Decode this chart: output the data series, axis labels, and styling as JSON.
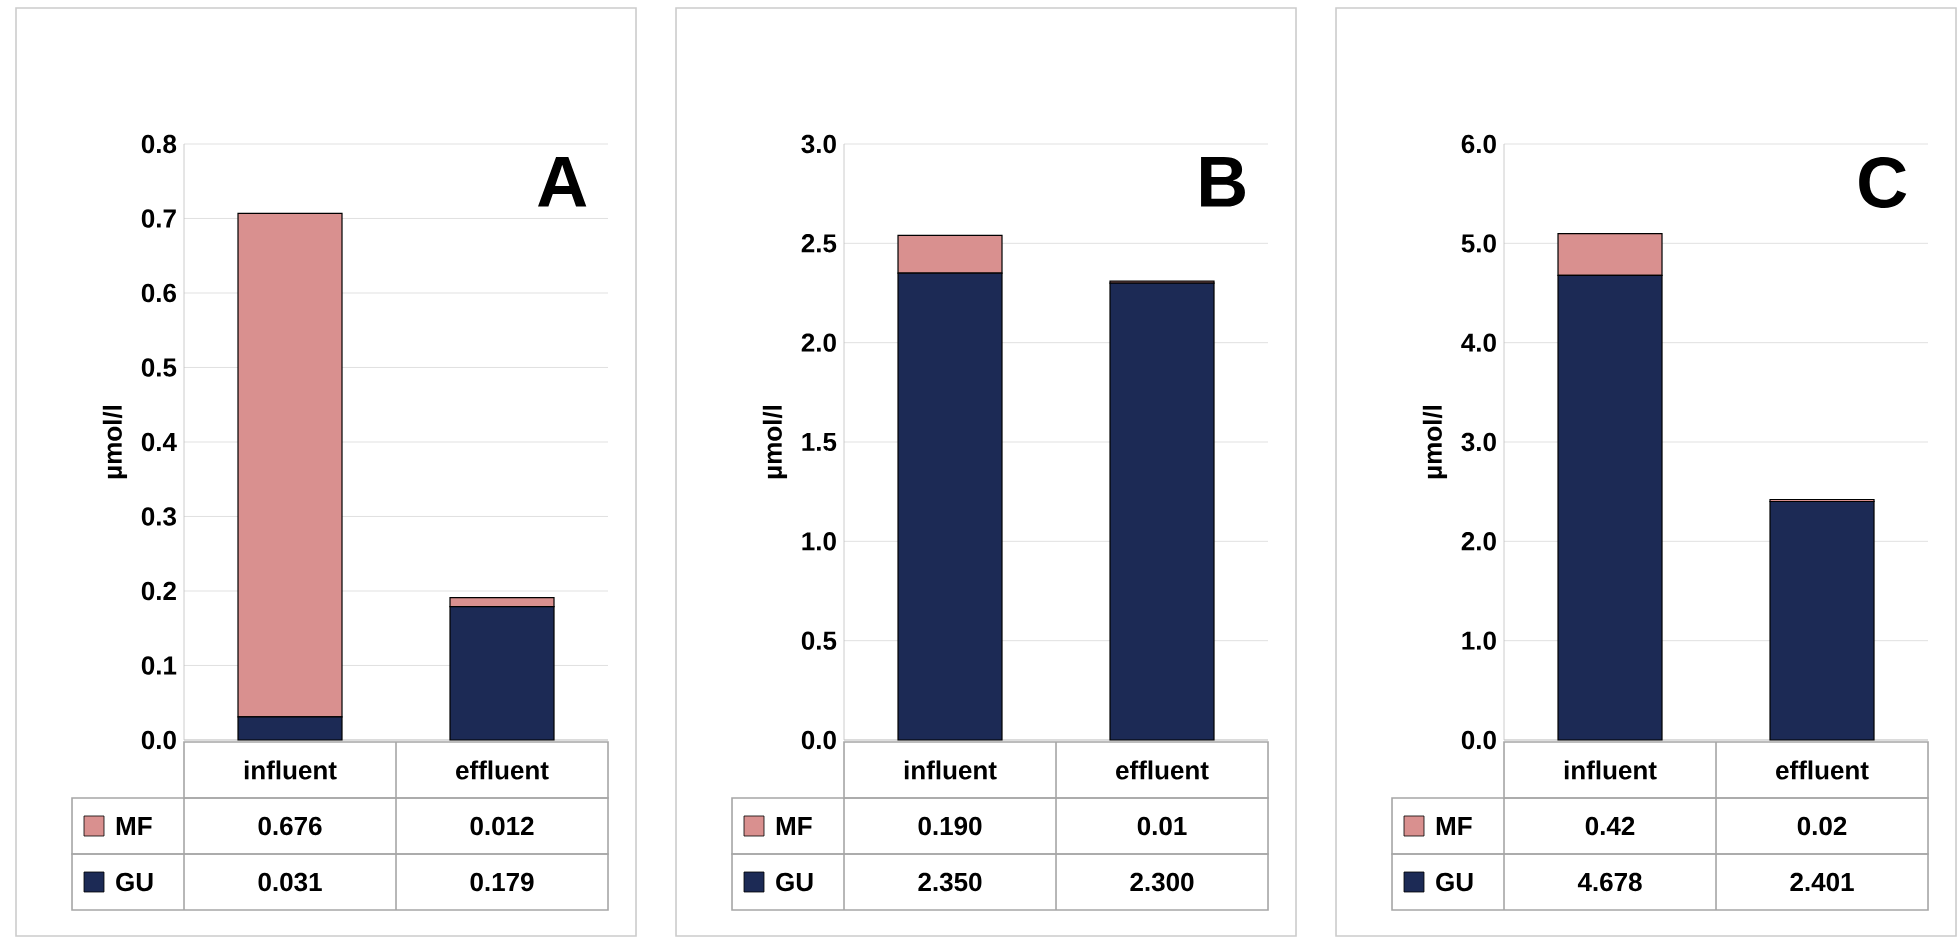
{
  "chart_data": [
    {
      "type": "bar",
      "title": "A",
      "ylabel": "µmol/l",
      "categories": [
        "influent",
        "effluent"
      ],
      "stacked": true,
      "grid": "y",
      "legend": "bottom",
      "ylim": [
        0,
        0.8
      ],
      "yticks": [
        {
          "value": 0,
          "label": "0.0"
        },
        0.1,
        0.2,
        0.3,
        0.4,
        0.5,
        0.6,
        0.7,
        0.8
      ],
      "series": [
        {
          "name": "GU",
          "color": "#1c2a55",
          "values": [
            0.031,
            0.179
          ],
          "value_labels": [
            "0.031",
            "0.179"
          ]
        },
        {
          "name": "MF",
          "color": "#d9908f",
          "values": [
            0.676,
            0.012
          ],
          "value_labels": [
            "0.676",
            "0.012"
          ]
        }
      ]
    },
    {
      "type": "bar",
      "title": "B",
      "ylabel": "µmol/l",
      "categories": [
        "influent",
        "effluent"
      ],
      "stacked": true,
      "grid": "y",
      "legend": "bottom",
      "ylim": [
        0,
        3
      ],
      "yticks": [
        {
          "value": 0,
          "label": "0.0"
        },
        0.5,
        {
          "value": 1,
          "label": "1.0"
        },
        1.5,
        {
          "value": 2,
          "label": "2.0"
        },
        2.5,
        {
          "value": 3,
          "label": "3.0"
        }
      ],
      "series": [
        {
          "name": "GU",
          "color": "#1c2a55",
          "values": [
            2.35,
            2.3
          ],
          "value_labels": [
            "2.350",
            "2.300"
          ]
        },
        {
          "name": "MF",
          "color": "#d9908f",
          "values": [
            0.19,
            0.01
          ],
          "value_labels": [
            "0.190",
            "0.01"
          ]
        }
      ]
    },
    {
      "type": "bar",
      "title": "C",
      "ylabel": "µmol/l",
      "categories": [
        "influent",
        "effluent"
      ],
      "stacked": true,
      "grid": "y",
      "legend": "bottom",
      "ylim": [
        0,
        6
      ],
      "yticks": [
        {
          "value": 0,
          "label": "0.0"
        },
        {
          "value": 1,
          "label": "1.0"
        },
        {
          "value": 2,
          "label": "2.0"
        },
        {
          "value": 3,
          "label": "3.0"
        },
        {
          "value": 4,
          "label": "4.0"
        },
        {
          "value": 5,
          "label": "5.0"
        },
        {
          "value": 6,
          "label": "6.0"
        }
      ],
      "series": [
        {
          "name": "GU",
          "color": "#1c2a55",
          "values": [
            4.678,
            2.401
          ],
          "value_labels": [
            "4.678",
            "2.401"
          ]
        },
        {
          "name": "MF",
          "color": "#d9908f",
          "values": [
            0.42,
            0.02
          ],
          "value_labels": [
            "0.42",
            "0.02"
          ]
        }
      ]
    }
  ]
}
